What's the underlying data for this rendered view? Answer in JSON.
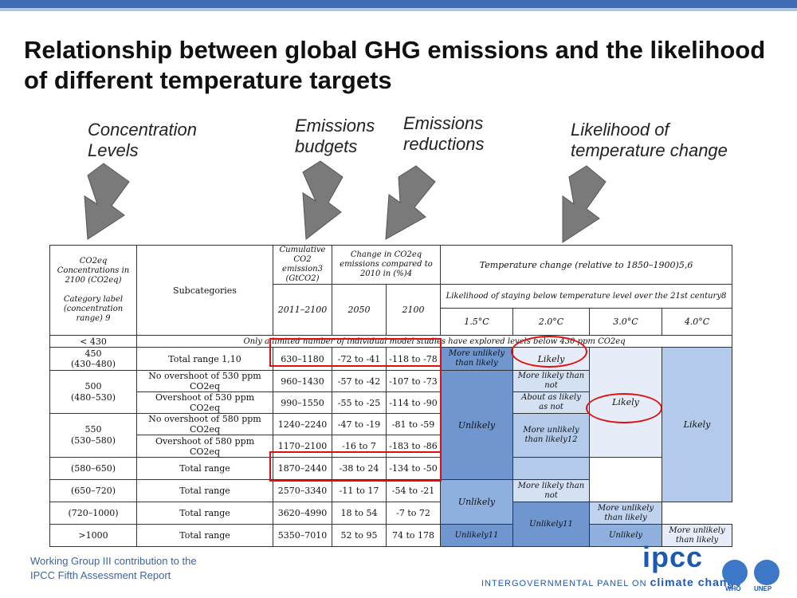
{
  "slide": {
    "title": "Relationship between global GHG emissions and the likelihood of different temperature targets"
  },
  "callouts": {
    "concentration": "Concentration\nLevels",
    "budgets": "Emissions\nbudgets",
    "reductions": "Emissions\nreductions",
    "likelihood": "Likelihood of\ntemperature change"
  },
  "table": {
    "h_co2": "CO2eq Concentrations in 2100 (CO2eq)\n\nCategory label (concentration range) 9",
    "h_sub": "Subcategories",
    "h_cum": "Cumulative CO2 emission3 (GtCO2)",
    "h_change": "Change in CO2eq emissions compared to 2010 in (%)4",
    "h_temp": "Temperature change (relative to 1850–1900)5,6",
    "h_likelihood": "Likelihood of staying below temperature level over the 21st century8",
    "h_2011": "2011–2100",
    "h_2050": "2050",
    "h_2100": "2100",
    "t15": "1.5°C",
    "t20": "2.0°C",
    "t30": "3.0°C",
    "t40": "4.0°C",
    "r430_label": "< 430",
    "r430_note": "Only a limited number of individual model studies have explored levels below 430 ppm CO2eq",
    "r450_label": "450\n(430–480)",
    "r450_sub": "Total range 1,10",
    "r450_cum": "630–1180",
    "r450_2050": "-72 to -41",
    "r450_2100": "-118 to -78",
    "r450_15": "More unlikely than likely",
    "r450_20": "Likely",
    "r500_label": "500\n(480–530)",
    "r500a_sub": "No overshoot of 530 ppm CO2eq",
    "r500a_cum": "960–1430",
    "r500a_2050": "-57 to -42",
    "r500a_2100": "-107 to -73",
    "r500a_20": "More likely than not",
    "r500b_sub": "Overshoot of 530 ppm CO2eq",
    "r500b_cum": "990–1550",
    "r500b_2050": "-55 to -25",
    "r500b_2100": "-114 to -90",
    "r500b_20": "About as likely as not",
    "r550_label": "550\n(530–580)",
    "r550a_sub": "No overshoot of 580 ppm CO2eq",
    "r550a_cum": "1240–2240",
    "r550a_2050": "-47 to -19",
    "r550a_2100": "-81 to -59",
    "r550b_sub": "Overshoot of 580 ppm CO2eq",
    "r550b_cum": "1170–2100",
    "r550b_2050": "-16 to 7",
    "r550b_2100": "-183 to -86",
    "r550_20": "More unlikely than likely12",
    "unlikely_15": "Unlikely",
    "likely_30": "Likely",
    "likely_40": "Likely",
    "r580_label": "(580–650)",
    "r580_sub": "Total range",
    "r580_cum": "1870–2440",
    "r580_2050": "-38 to 24",
    "r580_2100": "-134 to -50",
    "r650_label": "(650–720)",
    "r650_sub": "Total range",
    "r650_cum": "2570–3340",
    "r650_2050": "-11 to 17",
    "r650_2100": "-54 to -21",
    "r650_20": "Unlikely",
    "r650_30": "More likely than not",
    "r720_label": "(720–1000)",
    "r720_sub": "Total range",
    "r720_cum": "3620–4990",
    "r720_2050": "18 to 54",
    "r720_2100": "-7 to 72",
    "r720_15": "Unlikely11",
    "r720_30": "More unlikely than likely",
    "r1000_label": ">1000",
    "r1000_sub": "Total range",
    "r1000_cum": "5350–7010",
    "r1000_2050": "52 to 95",
    "r1000_2100": "74 to 178",
    "r1000_20": "Unlikely11",
    "r1000_30": "Unlikely",
    "r1000_40": "More unlikely than likely"
  },
  "footer": {
    "line": "Working Group III contribution to the\nIPCC Fifth Assessment Report",
    "ipcc": "ipcc",
    "ipcc_full": "INTERGOVERNMENTAL PANEL ON",
    "ipcc_cc": "climate change",
    "who": "WHO",
    "unep": "UNEP"
  },
  "colors": {
    "accent": "#3e6bb5",
    "highlight": "#e01010"
  }
}
